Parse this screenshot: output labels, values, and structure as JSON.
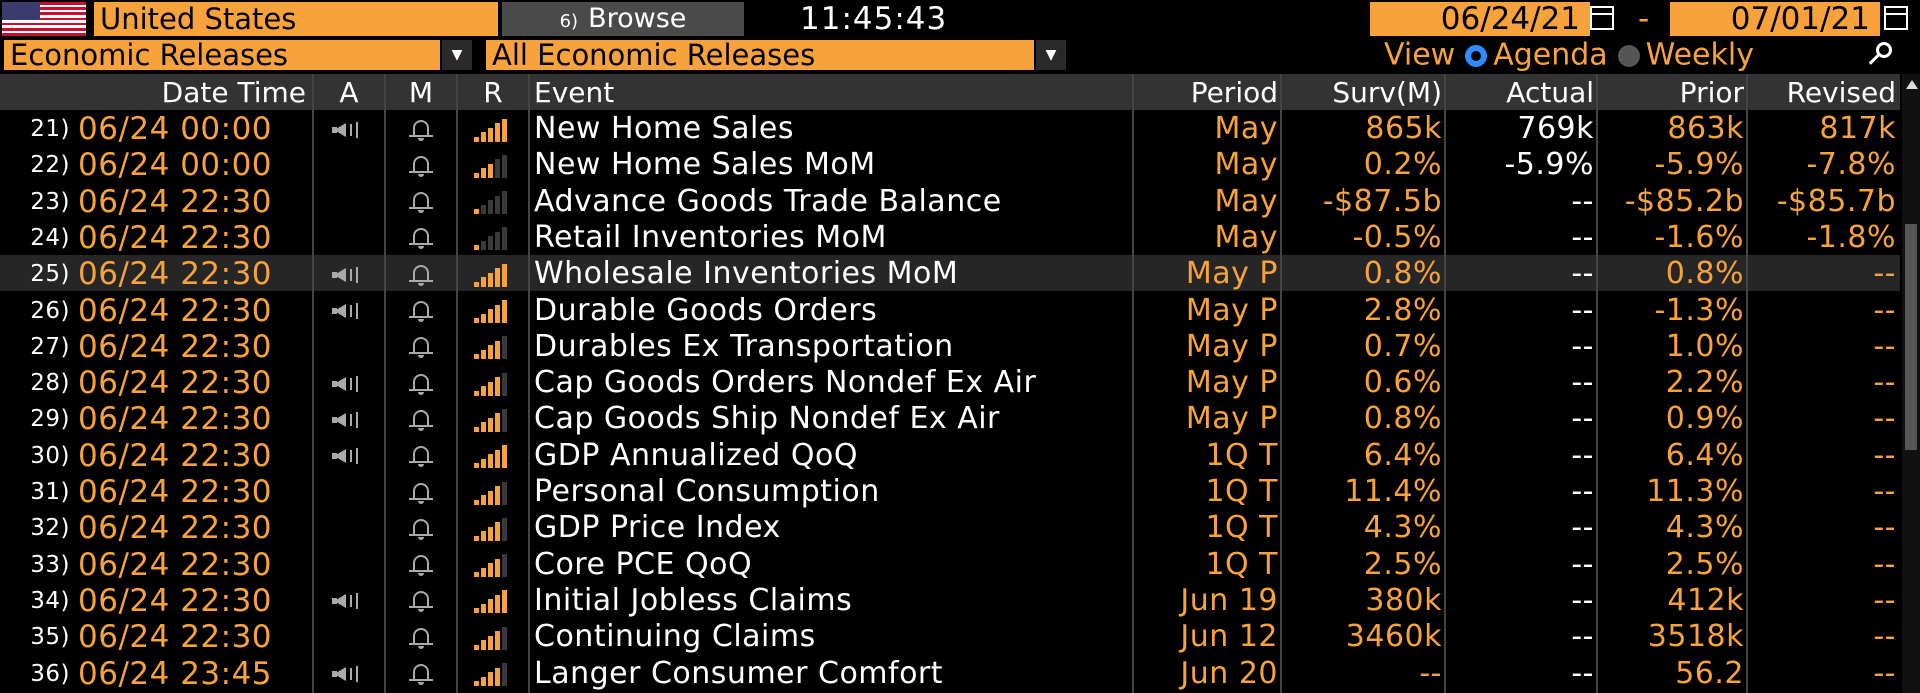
{
  "header": {
    "country": "United States",
    "browse_num": "6)",
    "browse_label": "Browse",
    "clock": "11:45:43",
    "date_from": "06/24/21",
    "date_sep": "-",
    "date_to": "07/01/21"
  },
  "filters": {
    "category": "Economic Releases",
    "subcategory": "All Economic Releases",
    "view_label": "View",
    "agenda_label": "Agenda",
    "weekly_label": "Weekly",
    "selected_view": "Agenda"
  },
  "columns": {
    "datetime": "Date Time",
    "a": "A",
    "m": "M",
    "r": "R",
    "event": "Event",
    "period": "Period",
    "surv": "Surv(M)",
    "actual": "Actual",
    "prior": "Prior",
    "revised": "Revised"
  },
  "rows": [
    {
      "num": "21)",
      "dt": "06/24 00:00",
      "alert": true,
      "rel": 5,
      "event": "New Home Sales",
      "period": "May",
      "surv": "865k",
      "actual": "769k",
      "prior": "863k",
      "revised": "817k"
    },
    {
      "num": "22)",
      "dt": "06/24 00:00",
      "alert": false,
      "rel": 3,
      "event": "New Home Sales MoM",
      "period": "May",
      "surv": "0.2%",
      "actual": "-5.9%",
      "prior": "-5.9%",
      "revised": "-7.8%"
    },
    {
      "num": "23)",
      "dt": "06/24 22:30",
      "alert": false,
      "rel": 1,
      "event": "Advance Goods Trade Balance",
      "period": "May",
      "surv": "-$87.5b",
      "actual": "--",
      "prior": "-$85.2b",
      "revised": "-$85.7b"
    },
    {
      "num": "24)",
      "dt": "06/24 22:30",
      "alert": false,
      "rel": 1,
      "event": "Retail Inventories MoM",
      "period": "May",
      "surv": "-0.5%",
      "actual": "--",
      "prior": "-1.6%",
      "revised": "-1.8%"
    },
    {
      "num": "25)",
      "dt": "06/24 22:30",
      "alert": true,
      "rel": 5,
      "event": "Wholesale Inventories MoM",
      "period": "May P",
      "surv": "0.8%",
      "actual": "--",
      "prior": "0.8%",
      "revised": "--"
    },
    {
      "num": "26)",
      "dt": "06/24 22:30",
      "alert": true,
      "rel": 5,
      "event": "Durable Goods Orders",
      "period": "May P",
      "surv": "2.8%",
      "actual": "--",
      "prior": "-1.3%",
      "revised": "--"
    },
    {
      "num": "27)",
      "dt": "06/24 22:30",
      "alert": false,
      "rel": 4,
      "event": "Durables Ex Transportation",
      "period": "May P",
      "surv": "0.7%",
      "actual": "--",
      "prior": "1.0%",
      "revised": "--"
    },
    {
      "num": "28)",
      "dt": "06/24 22:30",
      "alert": true,
      "rel": 4,
      "event": "Cap Goods Orders Nondef Ex Air",
      "period": "May P",
      "surv": "0.6%",
      "actual": "--",
      "prior": "2.2%",
      "revised": "--"
    },
    {
      "num": "29)",
      "dt": "06/24 22:30",
      "alert": true,
      "rel": 4,
      "event": "Cap Goods Ship Nondef Ex Air",
      "period": "May P",
      "surv": "0.8%",
      "actual": "--",
      "prior": "0.9%",
      "revised": "--"
    },
    {
      "num": "30)",
      "dt": "06/24 22:30",
      "alert": true,
      "rel": 5,
      "event": "GDP Annualized QoQ",
      "period": "1Q T",
      "surv": "6.4%",
      "actual": "--",
      "prior": "6.4%",
      "revised": "--"
    },
    {
      "num": "31)",
      "dt": "06/24 22:30",
      "alert": false,
      "rel": 4,
      "event": "Personal Consumption",
      "period": "1Q T",
      "surv": "11.4%",
      "actual": "--",
      "prior": "11.3%",
      "revised": "--"
    },
    {
      "num": "32)",
      "dt": "06/24 22:30",
      "alert": false,
      "rel": 4,
      "event": "GDP Price Index",
      "period": "1Q T",
      "surv": "4.3%",
      "actual": "--",
      "prior": "4.3%",
      "revised": "--"
    },
    {
      "num": "33)",
      "dt": "06/24 22:30",
      "alert": false,
      "rel": 4,
      "event": "Core PCE QoQ",
      "period": "1Q T",
      "surv": "2.5%",
      "actual": "--",
      "prior": "2.5%",
      "revised": "--"
    },
    {
      "num": "34)",
      "dt": "06/24 22:30",
      "alert": true,
      "rel": 5,
      "event": "Initial Jobless Claims",
      "period": "Jun 19",
      "surv": "380k",
      "actual": "--",
      "prior": "412k",
      "revised": "--"
    },
    {
      "num": "35)",
      "dt": "06/24 22:30",
      "alert": false,
      "rel": 4,
      "event": "Continuing Claims",
      "period": "Jun 12",
      "surv": "3460k",
      "actual": "--",
      "prior": "3518k",
      "revised": "--"
    },
    {
      "num": "36)",
      "dt": "06/24 23:45",
      "alert": true,
      "rel": 4,
      "event": "Langer Consumer Comfort",
      "period": "Jun 20",
      "surv": "--",
      "actual": "--",
      "prior": "56.2",
      "revised": "--"
    }
  ],
  "selected_row": 4,
  "colors": {
    "accent": "#f7a23b",
    "header_bg": "#333333",
    "selected_row": "#262626",
    "radio_on": "#2d8cff"
  },
  "icons": {
    "flag": "us-flag-icon",
    "browse": "browse-icon",
    "calendar": "calendar-icon",
    "alert": "speaker-icon",
    "monitor": "bell-icon",
    "relevance": "relevance-bars-icon",
    "zoom": "zoom-icon"
  }
}
